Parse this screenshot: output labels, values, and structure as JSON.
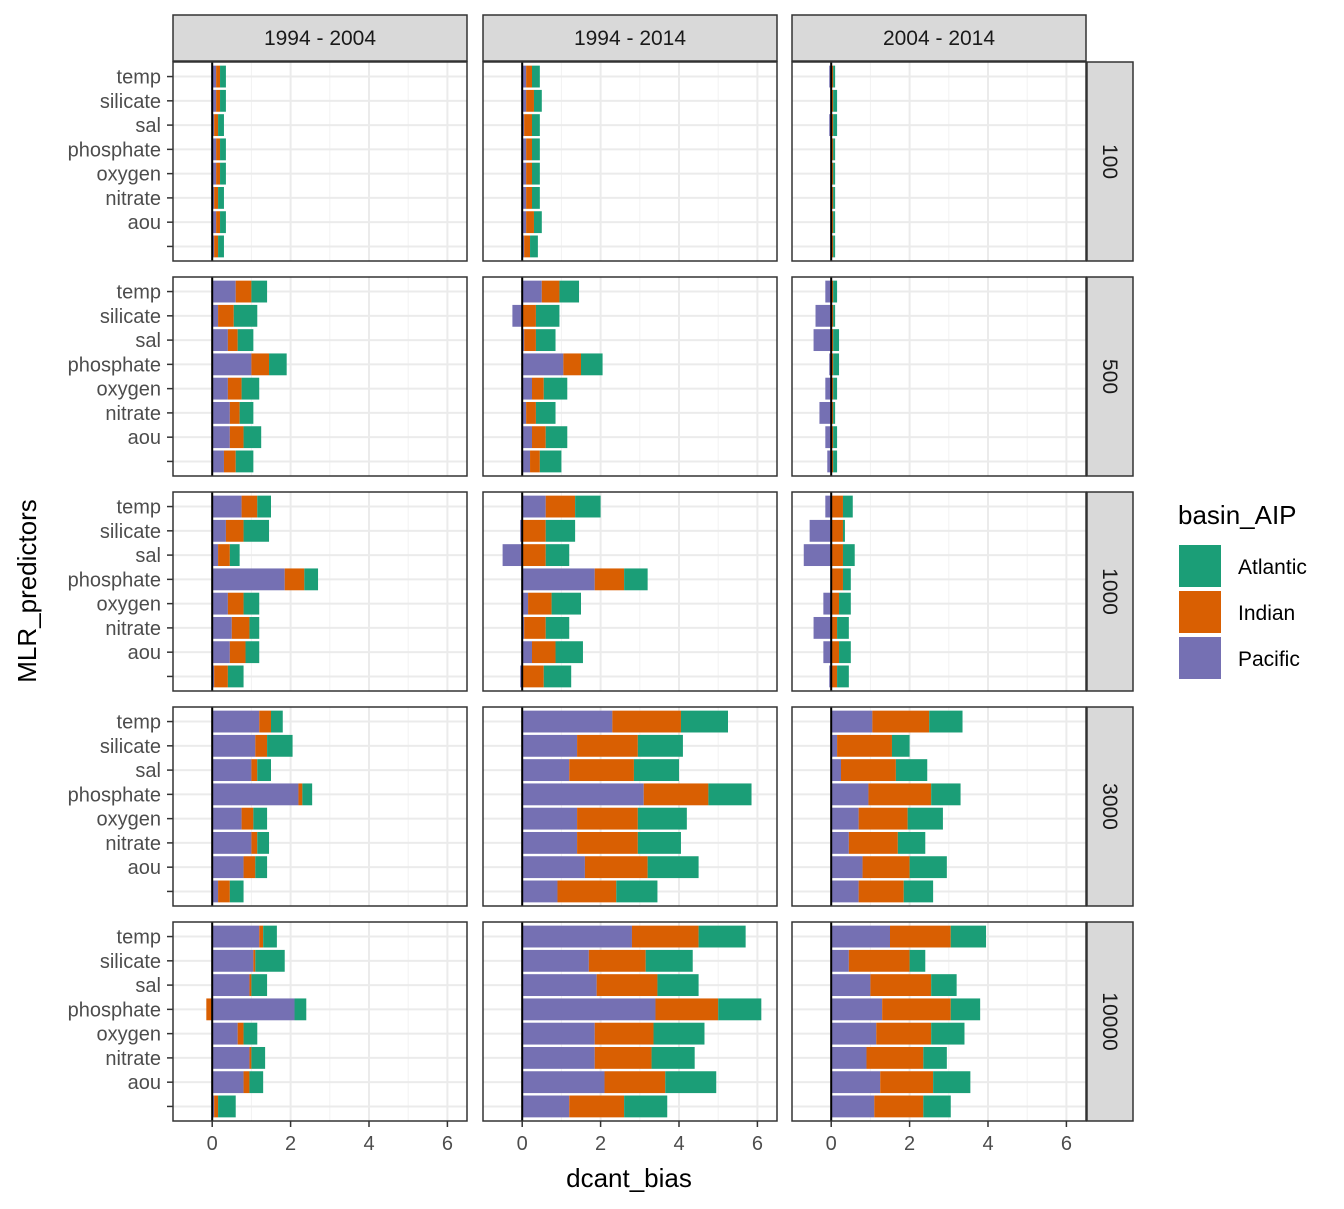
{
  "chart_data": {
    "type": "bar",
    "orientation": "horizontal",
    "stacked": true,
    "xlabel": "dcant_bias",
    "ylabel": "MLR_predictors",
    "xlim": [
      -1,
      6.5
    ],
    "x_ticks": [
      0,
      2,
      4,
      6
    ],
    "categories": [
      "temp",
      "silicate",
      "sal",
      "phosphate",
      "oxygen",
      "nitrate",
      "aou",
      ""
    ],
    "col_facets": [
      "1994 - 2004",
      "1994 - 2014",
      "2004 - 2014"
    ],
    "row_facets": [
      "100",
      "500",
      "1000",
      "3000",
      "10000"
    ],
    "legend": {
      "title": "basin_AIP",
      "placement": "right",
      "entries": [
        {
          "name": "Atlantic",
          "color": "#1b9e77"
        },
        {
          "name": "Indian",
          "color": "#d95f02"
        },
        {
          "name": "Pacific",
          "color": "#7570b3"
        }
      ]
    },
    "series_order": [
      "Pacific",
      "Indian",
      "Atlantic"
    ],
    "colors": {
      "Pacific": "#7570b3",
      "Indian": "#d95f02",
      "Atlantic": "#1b9e77"
    },
    "panels": [
      {
        "row": "100",
        "col": "1994 - 2004",
        "Pacific": [
          0.1,
          0.1,
          0.05,
          0.1,
          0.1,
          0.05,
          0.1,
          0.05
        ],
        "Indian": [
          0.1,
          0.1,
          0.1,
          0.1,
          0.1,
          0.1,
          0.1,
          0.1
        ],
        "Atlantic": [
          0.15,
          0.15,
          0.15,
          0.15,
          0.15,
          0.15,
          0.15,
          0.15
        ]
      },
      {
        "row": "500",
        "col": "1994 - 2004",
        "Pacific": [
          0.6,
          0.15,
          0.4,
          1.0,
          0.4,
          0.45,
          0.45,
          0.3
        ],
        "Indian": [
          0.4,
          0.4,
          0.25,
          0.45,
          0.35,
          0.25,
          0.35,
          0.3
        ],
        "Atlantic": [
          0.4,
          0.6,
          0.4,
          0.45,
          0.45,
          0.35,
          0.45,
          0.45
        ]
      },
      {
        "row": "1000",
        "col": "1994 - 2004",
        "Pacific": [
          0.75,
          0.35,
          0.15,
          1.85,
          0.4,
          0.5,
          0.45,
          0.05
        ],
        "Indian": [
          0.4,
          0.45,
          0.3,
          0.5,
          0.4,
          0.45,
          0.4,
          0.35
        ],
        "Atlantic": [
          0.35,
          0.65,
          0.25,
          0.35,
          0.4,
          0.25,
          0.35,
          0.4
        ]
      },
      {
        "row": "3000",
        "col": "1994 - 2004",
        "Pacific": [
          1.2,
          1.1,
          1.0,
          2.2,
          0.75,
          1.0,
          0.8,
          0.15
        ],
        "Indian": [
          0.3,
          0.3,
          0.15,
          0.1,
          0.3,
          0.15,
          0.3,
          0.3
        ],
        "Atlantic": [
          0.3,
          0.65,
          0.35,
          0.25,
          0.35,
          0.3,
          0.3,
          0.35
        ]
      },
      {
        "row": "10000",
        "col": "1994 - 2004",
        "Pacific": [
          1.2,
          1.05,
          0.95,
          2.1,
          0.65,
          0.95,
          0.8,
          0.05
        ],
        "Indian": [
          0.1,
          0.05,
          0.05,
          -0.15,
          0.15,
          0.05,
          0.15,
          0.1
        ],
        "Atlantic": [
          0.35,
          0.75,
          0.4,
          0.3,
          0.35,
          0.35,
          0.35,
          0.45
        ]
      },
      {
        "row": "100",
        "col": "1994 - 2014",
        "Pacific": [
          0.1,
          0.1,
          0.05,
          0.1,
          0.1,
          0.1,
          0.1,
          0.05
        ],
        "Indian": [
          0.15,
          0.2,
          0.2,
          0.15,
          0.15,
          0.15,
          0.2,
          0.15
        ],
        "Atlantic": [
          0.2,
          0.2,
          0.2,
          0.2,
          0.2,
          0.2,
          0.2,
          0.2
        ]
      },
      {
        "row": "500",
        "col": "1994 - 2014",
        "Pacific": [
          0.5,
          -0.25,
          0.05,
          1.05,
          0.25,
          0.1,
          0.25,
          0.2
        ],
        "Indian": [
          0.45,
          0.35,
          0.3,
          0.45,
          0.3,
          0.25,
          0.35,
          0.25
        ],
        "Atlantic": [
          0.5,
          0.6,
          0.5,
          0.55,
          0.6,
          0.5,
          0.55,
          0.55
        ]
      },
      {
        "row": "1000",
        "col": "1994 - 2014",
        "Pacific": [
          0.6,
          -0.05,
          -0.5,
          1.85,
          0.15,
          0.05,
          0.25,
          -0.05
        ],
        "Indian": [
          0.75,
          0.6,
          0.6,
          0.75,
          0.6,
          0.55,
          0.6,
          0.55
        ],
        "Atlantic": [
          0.65,
          0.75,
          0.6,
          0.6,
          0.75,
          0.6,
          0.7,
          0.7
        ]
      },
      {
        "row": "3000",
        "col": "1994 - 2014",
        "Pacific": [
          2.3,
          1.4,
          1.2,
          3.1,
          1.4,
          1.4,
          1.6,
          0.9
        ],
        "Indian": [
          1.75,
          1.55,
          1.65,
          1.65,
          1.55,
          1.55,
          1.6,
          1.5
        ],
        "Atlantic": [
          1.2,
          1.15,
          1.15,
          1.1,
          1.25,
          1.1,
          1.3,
          1.05
        ]
      },
      {
        "row": "10000",
        "col": "1994 - 2014",
        "Pacific": [
          2.8,
          1.7,
          1.9,
          3.4,
          1.85,
          1.85,
          2.1,
          1.2
        ],
        "Indian": [
          1.7,
          1.45,
          1.55,
          1.6,
          1.5,
          1.45,
          1.55,
          1.4
        ],
        "Atlantic": [
          1.2,
          1.2,
          1.05,
          1.1,
          1.3,
          1.1,
          1.3,
          1.1
        ]
      },
      {
        "row": "100",
        "col": "2004 - 2014",
        "Pacific": [
          -0.05,
          0.0,
          -0.05,
          0.0,
          0.0,
          0.0,
          0.0,
          0.0
        ],
        "Indian": [
          0.05,
          0.05,
          0.05,
          0.05,
          0.05,
          0.05,
          0.05,
          0.05
        ],
        "Atlantic": [
          0.05,
          0.1,
          0.1,
          0.05,
          0.05,
          0.05,
          0.05,
          0.05
        ]
      },
      {
        "row": "500",
        "col": "2004 - 2014",
        "Pacific": [
          -0.15,
          -0.4,
          -0.45,
          -0.05,
          -0.15,
          -0.3,
          -0.15,
          -0.1
        ],
        "Indian": [
          0.05,
          0.05,
          0.05,
          0.05,
          0.05,
          0.05,
          0.05,
          0.05
        ],
        "Atlantic": [
          0.1,
          0.05,
          0.15,
          0.15,
          0.1,
          0.05,
          0.1,
          0.1
        ]
      },
      {
        "row": "1000",
        "col": "2004 - 2014",
        "Pacific": [
          -0.15,
          -0.55,
          -0.7,
          0.0,
          -0.2,
          -0.45,
          -0.2,
          -0.05
        ],
        "Indian": [
          0.3,
          0.3,
          0.3,
          0.3,
          0.2,
          0.15,
          0.2,
          0.15
        ],
        "Atlantic": [
          0.25,
          0.05,
          0.3,
          0.2,
          0.3,
          0.3,
          0.3,
          0.3
        ]
      },
      {
        "row": "3000",
        "col": "2004 - 2014",
        "Pacific": [
          1.05,
          0.15,
          0.25,
          0.95,
          0.7,
          0.45,
          0.8,
          0.7
        ],
        "Indian": [
          1.45,
          1.4,
          1.4,
          1.6,
          1.25,
          1.25,
          1.2,
          1.15
        ],
        "Atlantic": [
          0.85,
          0.45,
          0.8,
          0.75,
          0.9,
          0.7,
          0.95,
          0.75
        ]
      },
      {
        "row": "10000",
        "col": "2004 - 2014",
        "Pacific": [
          1.5,
          0.45,
          1.0,
          1.3,
          1.15,
          0.9,
          1.25,
          1.1
        ],
        "Indian": [
          1.55,
          1.55,
          1.55,
          1.75,
          1.4,
          1.45,
          1.35,
          1.25
        ],
        "Atlantic": [
          0.9,
          0.4,
          0.65,
          0.75,
          0.85,
          0.6,
          0.95,
          0.7
        ]
      }
    ]
  }
}
